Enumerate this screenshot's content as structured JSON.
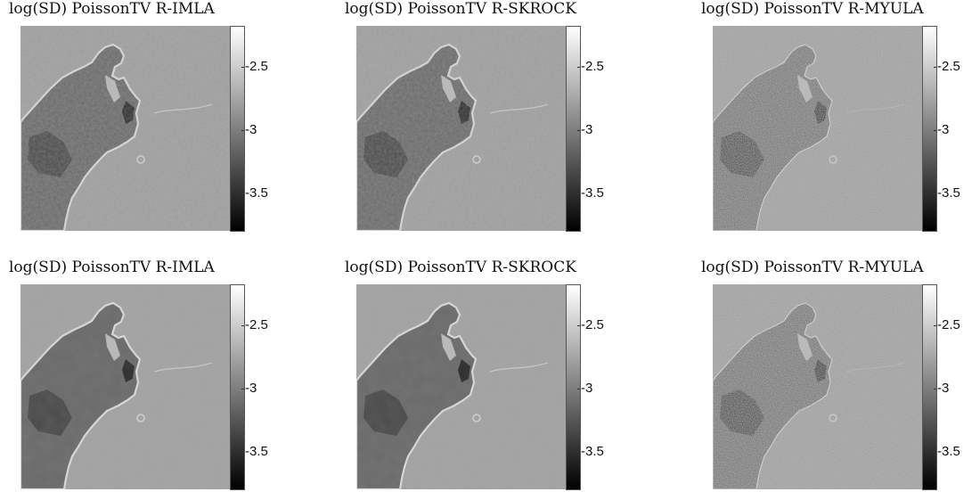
{
  "figure": {
    "panels": [
      {
        "title": "log(SD) PoissonTV R-IMLA",
        "noise": "low",
        "colorbar": {
          "ticks": [
            "-2.5",
            "-3",
            "-3.5"
          ]
        }
      },
      {
        "title": "log(SD) PoissonTV R-SKROCK",
        "noise": "low",
        "colorbar": {
          "ticks": [
            "-2.5",
            "-3",
            "-3.5"
          ]
        }
      },
      {
        "title": "log(SD) PoissonTV R-MYULA",
        "noise": "high",
        "colorbar": {
          "ticks": [
            "-2.5",
            "-3",
            "-3.5"
          ]
        }
      },
      {
        "title": "log(SD) PoissonTV R-IMLA",
        "noise": "smooth",
        "colorbar": {
          "ticks": [
            "-2.5",
            "-3",
            "-3.5"
          ]
        }
      },
      {
        "title": "log(SD) PoissonTV R-SKROCK",
        "noise": "smooth",
        "colorbar": {
          "ticks": [
            "-2.5",
            "-3",
            "-3.5"
          ]
        }
      },
      {
        "title": "log(SD) PoissonTV R-MYULA",
        "noise": "high",
        "colorbar": {
          "ticks": [
            "-2.5",
            "-3",
            "-3.5"
          ]
        }
      }
    ],
    "colormap": "gray"
  }
}
